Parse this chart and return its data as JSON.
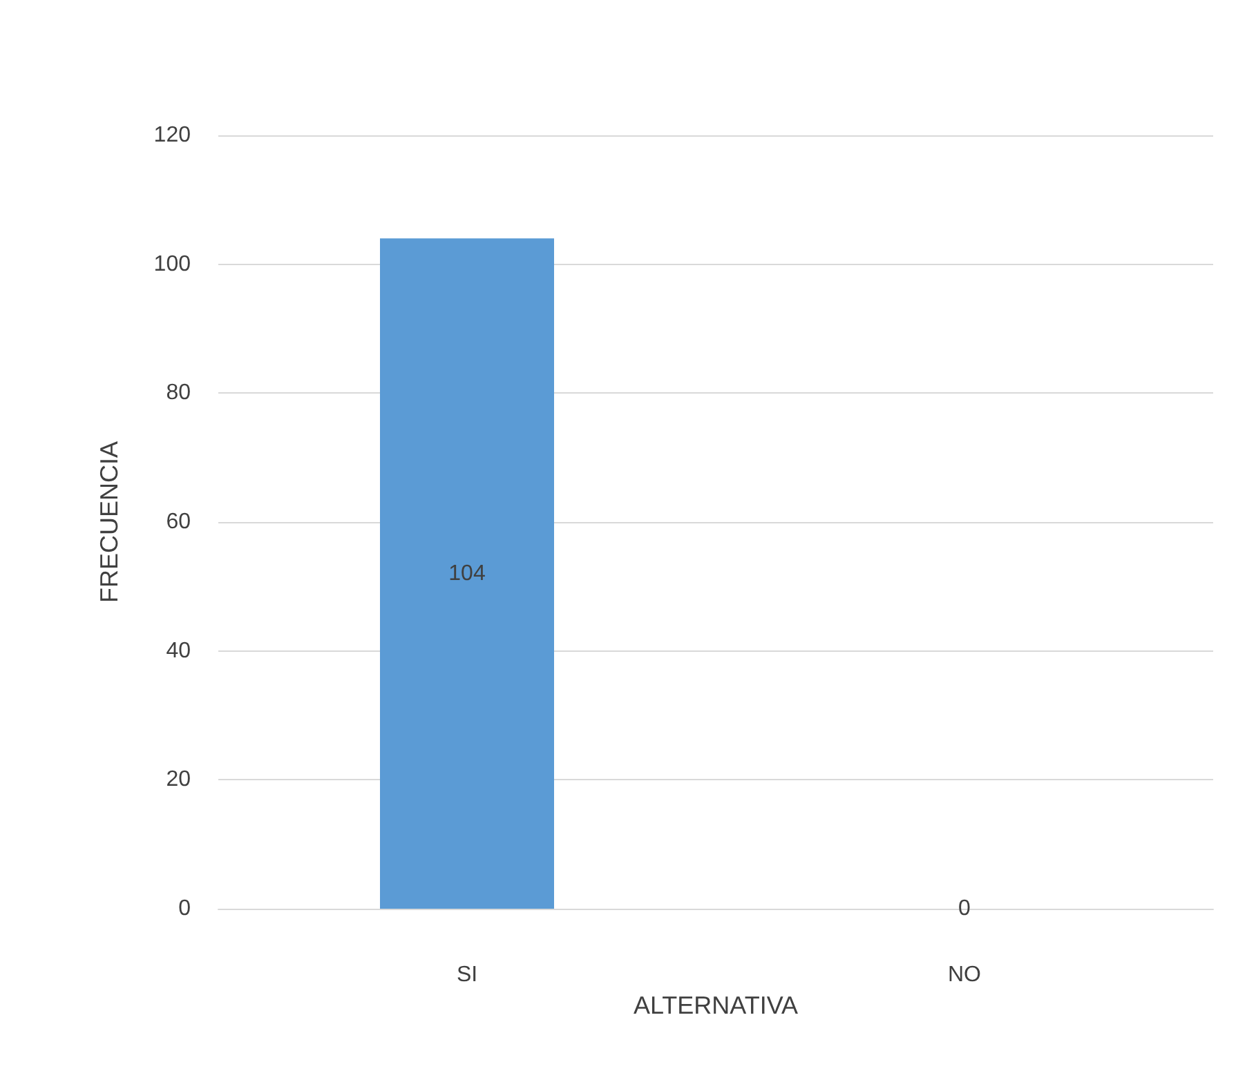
{
  "chart_data": {
    "type": "bar",
    "xlabel": "ALTERNATIVA",
    "ylabel": "FRECUENCIA",
    "categories": [
      "SI",
      "NO"
    ],
    "values": [
      104,
      0
    ],
    "colors": [
      "#5b9bd5",
      "#548235"
    ],
    "ylim": [
      0,
      120
    ],
    "yticks": [
      0,
      20,
      40,
      60,
      80,
      100,
      120
    ],
    "grid": "y",
    "data_labels": true
  }
}
